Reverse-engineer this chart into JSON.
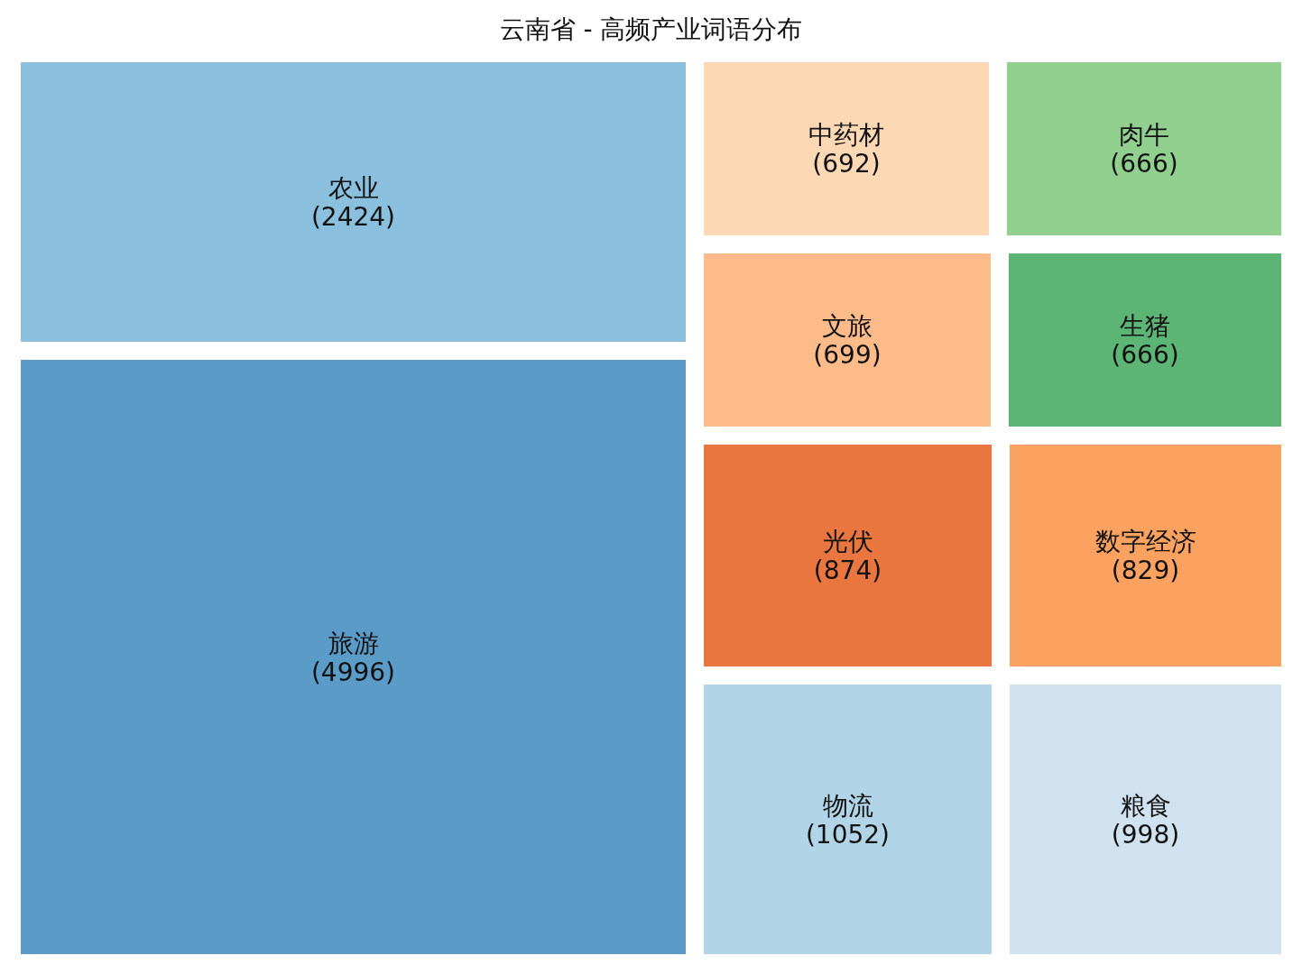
{
  "chart_data": {
    "type": "other",
    "title": "云南省 - 高频产业词语分布",
    "categories": [
      "农业",
      "旅游",
      "中药材",
      "肉牛",
      "文旅",
      "生猪",
      "光伏",
      "数字经济",
      "物流",
      "粮食"
    ],
    "values": [
      2424,
      4996,
      692,
      666,
      699,
      666,
      874,
      829,
      1052,
      998
    ],
    "colors": [
      "#8abfdd",
      "#5b9bc8",
      "#fcd9b4",
      "#90cf8e",
      "#fdbb8a",
      "#5cb574",
      "#e8763e",
      "#fba261",
      "#b1d4e7",
      "#d0e1f0"
    ],
    "value_labels": [
      "(2424)",
      "(4996)",
      "(692)",
      "(666)",
      "(699)",
      "(666)",
      "(874)",
      "(829)",
      "(1052)",
      "(998)"
    ]
  }
}
